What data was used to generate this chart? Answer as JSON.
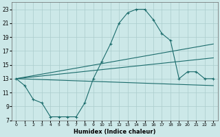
{
  "xlabel": "Humidex (Indice chaleur)",
  "bg_color": "#cce8e8",
  "grid_color": "#aacccc",
  "line_color": "#1a6b6b",
  "xlim": [
    -0.5,
    23.5
  ],
  "ylim": [
    7,
    24
  ],
  "xticks": [
    0,
    1,
    2,
    3,
    4,
    5,
    6,
    7,
    8,
    9,
    10,
    11,
    12,
    13,
    14,
    15,
    16,
    17,
    18,
    19,
    20,
    21,
    22,
    23
  ],
  "yticks": [
    7,
    9,
    11,
    13,
    15,
    17,
    19,
    21,
    23
  ],
  "line1_x": [
    0,
    1,
    2,
    3,
    4,
    5,
    6,
    7,
    8,
    9,
    10,
    11,
    12,
    13,
    14,
    15,
    16,
    17,
    18,
    19,
    20,
    21,
    22,
    23
  ],
  "line1_y": [
    13,
    12,
    10,
    9.5,
    7.5,
    7.5,
    7.5,
    7.5,
    9.5,
    13,
    15.5,
    18,
    21,
    22.5,
    23,
    23,
    21.5,
    19.5,
    18.5,
    13,
    14,
    14,
    13,
    13
  ],
  "line2_x": [
    0,
    23
  ],
  "line2_y": [
    13,
    18
  ],
  "line3_x": [
    0,
    23
  ],
  "line3_y": [
    13,
    12
  ],
  "line4_x": [
    0,
    23
  ],
  "line4_y": [
    13,
    16
  ]
}
